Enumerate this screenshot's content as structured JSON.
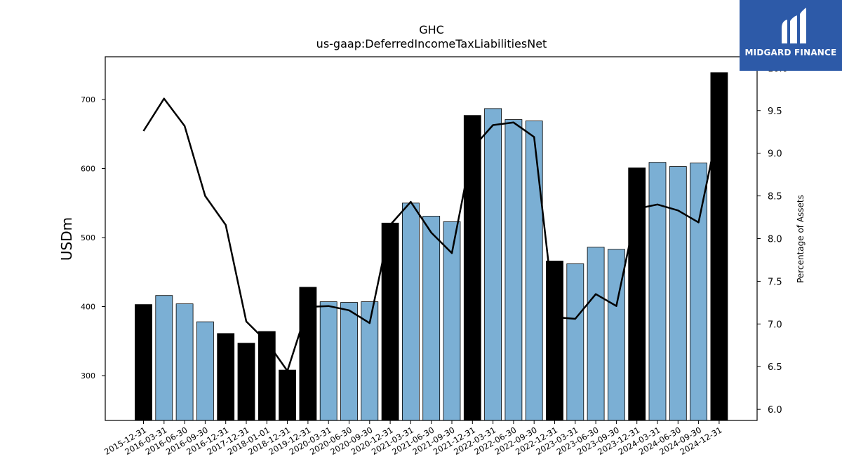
{
  "brand": {
    "name": "MIDGARD FINANCE",
    "bg_color": "#2d5aa8"
  },
  "chart_data": {
    "type": "bar",
    "title": "GHC",
    "subtitle": "us-gaap:DeferredIncomeTaxLiabilitiesNet",
    "ylabel": "USDm",
    "y2label": "Percentage of Assets",
    "ylim": [
      235,
      762
    ],
    "y2lim": [
      5.87,
      10.13
    ],
    "yticks": [
      300,
      400,
      500,
      600,
      700
    ],
    "y2ticks": [
      "6.0",
      "6.5",
      "7.0",
      "7.5",
      "8.0",
      "8.5",
      "9.0",
      "9.5",
      "10.0"
    ],
    "grid": false,
    "categories": [
      "2015-12-31",
      "2016-03-31",
      "2016-06-30",
      "2016-09-30",
      "2016-12-31",
      "2017-12-31",
      "2018-01-01",
      "2018-12-31",
      "2019-12-31",
      "2020-03-31",
      "2020-06-30",
      "2020-09-30",
      "2020-12-31",
      "2021-03-31",
      "2021-06-30",
      "2021-09-30",
      "2021-12-31",
      "2022-03-31",
      "2022-06-30",
      "2022-09-30",
      "2022-12-31",
      "2023-03-31",
      "2023-06-30",
      "2023-09-30",
      "2023-12-31",
      "2024-03-31",
      "2024-06-30",
      "2024-09-30",
      "2024-12-31"
    ],
    "series": [
      {
        "type": "bar",
        "values": [
          403,
          416,
          404,
          378,
          361,
          347,
          364,
          308,
          428,
          407,
          406,
          407,
          521,
          550,
          531,
          523,
          677,
          687,
          671,
          669,
          466,
          462,
          486,
          483,
          601,
          609,
          603,
          608,
          739
        ],
        "annual": [
          true,
          false,
          false,
          false,
          true,
          true,
          true,
          true,
          true,
          false,
          false,
          false,
          true,
          false,
          false,
          false,
          true,
          false,
          false,
          false,
          true,
          false,
          false,
          false,
          true,
          false,
          false,
          false,
          true
        ],
        "annual_color": "#000000",
        "quarter_color": "#7bafd4"
      },
      {
        "type": "line",
        "axis": "right",
        "color": "#000000",
        "values": [
          9.26,
          9.64,
          9.32,
          8.5,
          8.16,
          7.03,
          6.79,
          6.45,
          7.2,
          7.21,
          7.16,
          7.01,
          8.16,
          8.43,
          8.07,
          7.83,
          9.06,
          9.33,
          9.36,
          9.19,
          7.08,
          7.06,
          7.35,
          7.21,
          8.35,
          8.4,
          8.33,
          8.19,
          9.35
        ]
      }
    ]
  }
}
